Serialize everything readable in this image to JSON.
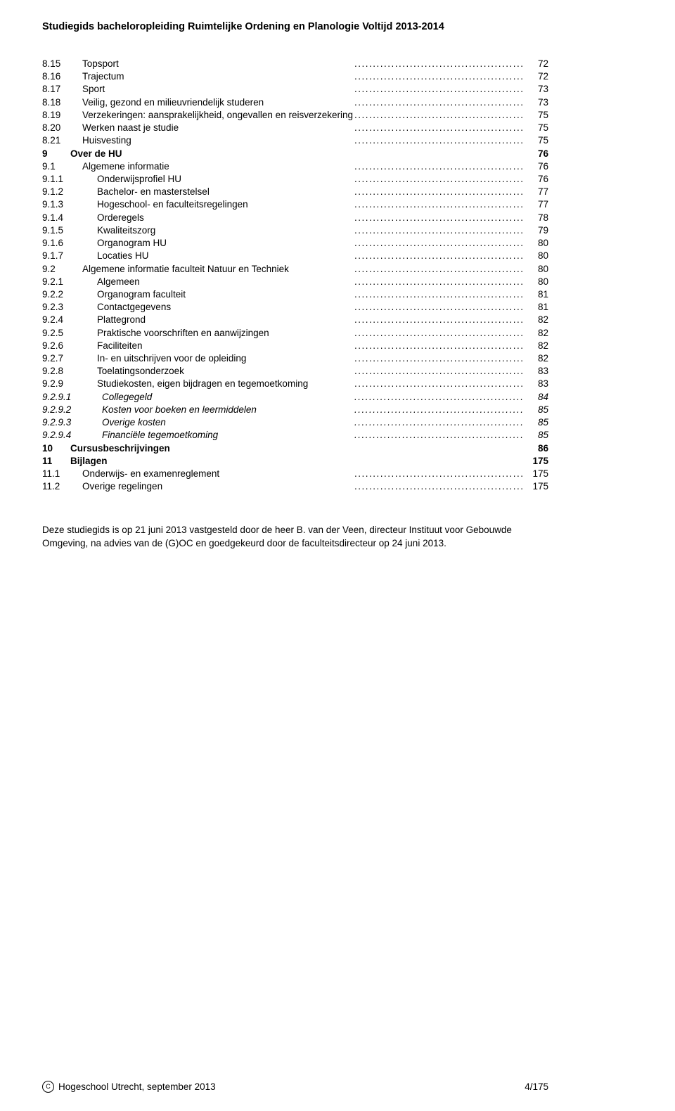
{
  "header": {
    "title": "Studiegids bacheloropleiding Ruimtelijke Ordening en Planologie Voltijd 2013-2014"
  },
  "toc": [
    {
      "num": "8.15",
      "label": "Topsport",
      "page": "72",
      "level": 1,
      "bold": false,
      "italic": false,
      "dots": true
    },
    {
      "num": "8.16",
      "label": "Trajectum",
      "page": "72",
      "level": 1,
      "bold": false,
      "italic": false,
      "dots": true
    },
    {
      "num": "8.17",
      "label": "Sport",
      "page": "73",
      "level": 1,
      "bold": false,
      "italic": false,
      "dots": true
    },
    {
      "num": "8.18",
      "label": "Veilig, gezond en milieuvriendelijk studeren",
      "page": "73",
      "level": 1,
      "bold": false,
      "italic": false,
      "dots": true
    },
    {
      "num": "8.19",
      "label": "Verzekeringen: aansprakelijkheid, ongevallen en reisverzekering",
      "page": "75",
      "level": 1,
      "bold": false,
      "italic": false,
      "dots": true
    },
    {
      "num": "8.20",
      "label": "Werken naast je studie",
      "page": "75",
      "level": 1,
      "bold": false,
      "italic": false,
      "dots": true
    },
    {
      "num": "8.21",
      "label": "Huisvesting",
      "page": "75",
      "level": 1,
      "bold": false,
      "italic": false,
      "dots": true
    },
    {
      "num": "9",
      "label": "Over de HU",
      "page": "76",
      "level": 0,
      "bold": true,
      "italic": false,
      "dots": false
    },
    {
      "num": "9.1",
      "label": "Algemene informatie",
      "page": "76",
      "level": 1,
      "bold": false,
      "italic": false,
      "dots": true
    },
    {
      "num": "9.1.1",
      "label": "Onderwijsprofiel HU",
      "page": "76",
      "level": 2,
      "bold": false,
      "italic": false,
      "dots": true
    },
    {
      "num": "9.1.2",
      "label": "Bachelor- en masterstelsel",
      "page": "77",
      "level": 2,
      "bold": false,
      "italic": false,
      "dots": true
    },
    {
      "num": "9.1.3",
      "label": "Hogeschool- en faculteitsregelingen",
      "page": "77",
      "level": 2,
      "bold": false,
      "italic": false,
      "dots": true
    },
    {
      "num": "9.1.4",
      "label": "Orderegels",
      "page": "78",
      "level": 2,
      "bold": false,
      "italic": false,
      "dots": true
    },
    {
      "num": "9.1.5",
      "label": "Kwaliteitszorg",
      "page": "79",
      "level": 2,
      "bold": false,
      "italic": false,
      "dots": true
    },
    {
      "num": "9.1.6",
      "label": "Organogram HU",
      "page": "80",
      "level": 2,
      "bold": false,
      "italic": false,
      "dots": true
    },
    {
      "num": "9.1.7",
      "label": "Locaties HU",
      "page": "80",
      "level": 2,
      "bold": false,
      "italic": false,
      "dots": true
    },
    {
      "num": "9.2",
      "label": "Algemene informatie faculteit Natuur en Techniek",
      "page": "80",
      "level": 1,
      "bold": false,
      "italic": false,
      "dots": true
    },
    {
      "num": "9.2.1",
      "label": "Algemeen",
      "page": "80",
      "level": 2,
      "bold": false,
      "italic": false,
      "dots": true
    },
    {
      "num": "9.2.2",
      "label": "Organogram faculteit",
      "page": "81",
      "level": 2,
      "bold": false,
      "italic": false,
      "dots": true
    },
    {
      "num": "9.2.3",
      "label": "Contactgegevens",
      "page": "81",
      "level": 2,
      "bold": false,
      "italic": false,
      "dots": true
    },
    {
      "num": "9.2.4",
      "label": "Plattegrond",
      "page": "82",
      "level": 2,
      "bold": false,
      "italic": false,
      "dots": true
    },
    {
      "num": "9.2.5",
      "label": "Praktische voorschriften en aanwijzingen",
      "page": "82",
      "level": 2,
      "bold": false,
      "italic": false,
      "dots": true
    },
    {
      "num": "9.2.6",
      "label": "Faciliteiten",
      "page": "82",
      "level": 2,
      "bold": false,
      "italic": false,
      "dots": true
    },
    {
      "num": "9.2.7",
      "label": "In- en uitschrijven voor de opleiding",
      "page": "82",
      "level": 2,
      "bold": false,
      "italic": false,
      "dots": true
    },
    {
      "num": "9.2.8",
      "label": "Toelatingsonderzoek",
      "page": "83",
      "level": 2,
      "bold": false,
      "italic": false,
      "dots": true
    },
    {
      "num": "9.2.9",
      "label": "Studiekosten, eigen bijdragen en tegemoetkoming",
      "page": "83",
      "level": 2,
      "bold": false,
      "italic": false,
      "dots": true
    },
    {
      "num": "9.2.9.1",
      "label": "Collegegeld",
      "page": "84",
      "level": 3,
      "bold": false,
      "italic": true,
      "dots": true
    },
    {
      "num": "9.2.9.2",
      "label": "Kosten voor boeken en leermiddelen",
      "page": "85",
      "level": 3,
      "bold": false,
      "italic": true,
      "dots": true
    },
    {
      "num": "9.2.9.3",
      "label": "Overige kosten",
      "page": "85",
      "level": 3,
      "bold": false,
      "italic": true,
      "dots": true
    },
    {
      "num": "9.2.9.4",
      "label": "Financiële tegemoetkoming",
      "page": "85",
      "level": 3,
      "bold": false,
      "italic": true,
      "dots": true
    },
    {
      "num": "10",
      "label": "Cursusbeschrijvingen",
      "page": "86",
      "level": 0,
      "bold": true,
      "italic": false,
      "dots": false
    },
    {
      "num": "11",
      "label": "Bijlagen",
      "page": "175",
      "level": 0,
      "bold": true,
      "italic": false,
      "dots": false
    },
    {
      "num": "11.1",
      "label": "Onderwijs- en examenreglement",
      "page": "175",
      "level": 1,
      "bold": false,
      "italic": false,
      "dots": true
    },
    {
      "num": "11.2",
      "label": "Overige regelingen",
      "page": "175",
      "level": 1,
      "bold": false,
      "italic": false,
      "dots": true
    }
  ],
  "closing": {
    "text": "Deze studiegids is op 21 juni 2013 vastgesteld door de heer B. van der Veen, directeur Instituut voor Gebouwde Omgeving, na advies van de (G)OC en goedgekeurd door de faculteitsdirecteur op 24 juni 2013."
  },
  "footer": {
    "left": "Hogeschool Utrecht, september 2013",
    "right": "4/175",
    "copyright_symbol": "C"
  }
}
